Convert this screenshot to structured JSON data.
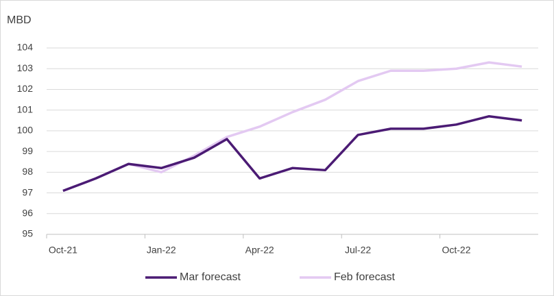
{
  "chart_data": {
    "type": "line",
    "y_axis_label": "MBD",
    "categories": [
      "Oct-21",
      null,
      null,
      "Jan-22",
      null,
      null,
      "Apr-22",
      null,
      null,
      "Jul-22",
      null,
      null,
      "Oct-22",
      null,
      null
    ],
    "series": [
      {
        "name": "Mar forecast",
        "color": "#4b1b74",
        "values": [
          97.1,
          97.7,
          98.4,
          98.2,
          98.7,
          99.6,
          97.7,
          98.2,
          98.1,
          99.8,
          100.1,
          100.1,
          100.3,
          100.7,
          100.5
        ]
      },
      {
        "name": "Feb forecast",
        "color": "#e3c9f2",
        "values": [
          97.1,
          97.7,
          98.4,
          98.0,
          98.8,
          99.7,
          100.2,
          100.9,
          101.5,
          102.4,
          102.9,
          102.9,
          103.0,
          103.3,
          103.1
        ]
      }
    ],
    "ylim": [
      95,
      104
    ],
    "yticks": [
      95,
      96,
      97,
      98,
      99,
      100,
      101,
      102,
      103,
      104
    ],
    "grid": true,
    "legend": "bottom"
  }
}
